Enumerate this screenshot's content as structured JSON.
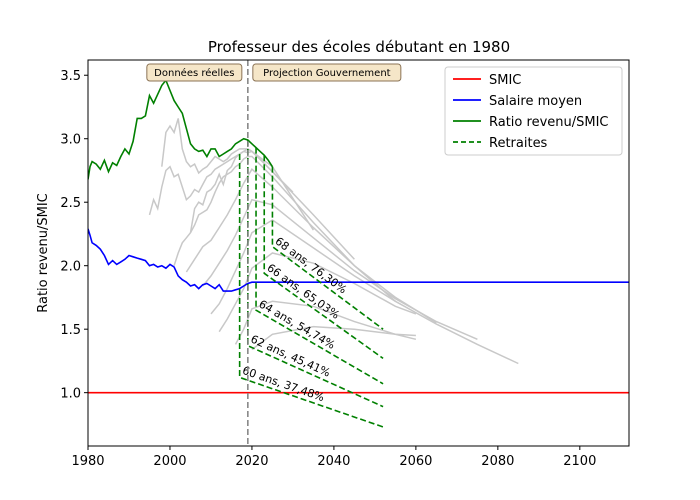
{
  "chart_data": {
    "type": "line",
    "title": "Professeur des écoles débutant en 1980",
    "xlabel": "",
    "ylabel": "Ratio revenu/SMIC",
    "xlim": [
      1980,
      2112
    ],
    "ylim": [
      0.58,
      3.62
    ],
    "x_ticks": [
      1980,
      2000,
      2020,
      2040,
      2060,
      2080,
      2100
    ],
    "y_ticks": [
      1.0,
      1.5,
      2.0,
      2.5,
      3.0,
      3.5
    ],
    "grid": false,
    "legend_position": "top-right",
    "colors": {
      "smic": "#ff0000",
      "salaire": "#0000ff",
      "ratio": "#008000",
      "retraites": "#008000",
      "ghost": "#c8c8c8",
      "divider": "#808080",
      "annot_fill": "#f5e6c8",
      "annot_border": "#8b7355"
    },
    "divider_x": 2019,
    "annotations": [
      {
        "text": "Données réelles",
        "anchor": "left-of-divider"
      },
      {
        "text": "Projection Gouvernement",
        "anchor": "right-of-divider"
      }
    ],
    "legend": [
      {
        "label": "SMIC",
        "color": "#ff0000",
        "style": "solid"
      },
      {
        "label": "Salaire moyen",
        "color": "#0000ff",
        "style": "solid"
      },
      {
        "label": "Ratio revenu/SMIC",
        "color": "#008000",
        "style": "solid"
      },
      {
        "label": "Retraites",
        "color": "#008000",
        "style": "dashed"
      }
    ],
    "series": [
      {
        "name": "SMIC",
        "x": [
          1980,
          2112
        ],
        "y": [
          1.0,
          1.0
        ]
      },
      {
        "name": "Salaire moyen",
        "x": [
          1980,
          1980.5,
          1981,
          1982,
          1983,
          1984,
          1985,
          1986,
          1987,
          1988,
          1989,
          1990,
          1991,
          1992,
          1993,
          1994,
          1995,
          1996,
          1997,
          1998,
          1999,
          2000,
          2001,
          2002,
          2003,
          2004,
          2005,
          2006,
          2007,
          2008,
          2009,
          2010,
          2011,
          2012,
          2013,
          2014,
          2015,
          2016,
          2017,
          2018,
          2019,
          2020,
          2112
        ],
        "y": [
          2.29,
          2.24,
          2.18,
          2.16,
          2.13,
          2.08,
          2.01,
          2.04,
          2.01,
          2.03,
          2.05,
          2.08,
          2.07,
          2.06,
          2.05,
          2.04,
          2.0,
          2.01,
          1.99,
          2.0,
          1.98,
          2.01,
          1.99,
          1.92,
          1.89,
          1.87,
          1.84,
          1.85,
          1.82,
          1.85,
          1.86,
          1.84,
          1.82,
          1.85,
          1.8,
          1.8,
          1.8,
          1.81,
          1.82,
          1.84,
          1.86,
          1.87,
          1.87
        ]
      },
      {
        "name": "Ratio revenu/SMIC",
        "x": [
          1980,
          1980.5,
          1981,
          1982,
          1983,
          1984,
          1985,
          1986,
          1987,
          1988,
          1989,
          1990,
          1991,
          1992,
          1993,
          1994,
          1995,
          1996,
          1997,
          1998,
          1999,
          2000,
          2001,
          2002,
          2003,
          2004,
          2005,
          2006,
          2007,
          2008,
          2009,
          2010,
          2011,
          2012,
          2013,
          2014,
          2015,
          2016,
          2017,
          2018,
          2019,
          2020,
          2021,
          2022,
          2023,
          2024,
          2025
        ],
        "y": [
          2.68,
          2.78,
          2.82,
          2.8,
          2.76,
          2.83,
          2.74,
          2.81,
          2.79,
          2.86,
          2.92,
          2.88,
          2.98,
          3.16,
          3.16,
          3.18,
          3.34,
          3.28,
          3.35,
          3.42,
          3.46,
          3.38,
          3.3,
          3.25,
          3.2,
          3.08,
          2.96,
          2.92,
          2.9,
          2.91,
          2.86,
          2.92,
          2.92,
          2.86,
          2.88,
          2.9,
          2.92,
          2.96,
          2.98,
          3.0,
          2.99,
          2.96,
          2.93,
          2.9,
          2.87,
          2.83,
          2.78
        ]
      }
    ],
    "retirements": [
      {
        "age": 60,
        "rate": "37,48%",
        "label": "60 ans, 37,48%",
        "start_year": 2017,
        "start_ratio": 2.88,
        "pension_start": 1.12,
        "pension_end": 0.73,
        "end_year": 2052
      },
      {
        "age": 62,
        "rate": "45,41%",
        "label": "62 ans, 45,41%",
        "start_year": 2019,
        "start_ratio": 2.99,
        "pension_start": 1.37,
        "pension_end": 0.89,
        "end_year": 2052
      },
      {
        "age": 64,
        "rate": "54,74%",
        "label": "64 ans, 54,74%",
        "start_year": 2021,
        "start_ratio": 2.93,
        "pension_start": 1.65,
        "pension_end": 1.07,
        "end_year": 2052
      },
      {
        "age": 66,
        "rate": "65,03%",
        "label": "66 ans, 65,03%",
        "start_year": 2023,
        "start_ratio": 2.87,
        "pension_start": 1.94,
        "pension_end": 1.27,
        "end_year": 2052
      },
      {
        "age": 68,
        "rate": "76,30%",
        "label": "68 ans, 76,30%",
        "start_year": 2025,
        "start_ratio": 2.78,
        "pension_start": 2.15,
        "pension_end": 1.5,
        "end_year": 2052
      }
    ],
    "ghost_lines": [
      {
        "x": [
          2005,
          2006,
          2007,
          2008,
          2009,
          2010,
          2011,
          2012,
          2013,
          2014,
          2015,
          2016,
          2017,
          2018,
          2019,
          2020,
          2021,
          2022,
          2025,
          2030
        ],
        "y": [
          2.26,
          2.45,
          2.5,
          2.48,
          2.58,
          2.6,
          2.64,
          2.72,
          2.64,
          2.75,
          2.78,
          2.85,
          2.88,
          2.9,
          2.89,
          2.9,
          2.87,
          2.84,
          2.74,
          2.58
        ]
      },
      {
        "x": [
          1998,
          1999,
          2000,
          2001,
          2002,
          2003,
          2004,
          2005,
          2006,
          2007,
          2008,
          2009,
          2010,
          2011,
          2012,
          2013,
          2014,
          2015,
          2016,
          2017,
          2018,
          2019,
          2020,
          2025,
          2035
        ],
        "y": [
          2.78,
          3.05,
          3.1,
          3.05,
          3.16,
          2.92,
          2.82,
          2.78,
          2.8,
          2.73,
          2.76,
          2.78,
          2.82,
          2.86,
          2.84,
          2.82,
          2.84,
          2.88,
          2.9,
          2.92,
          2.92,
          2.92,
          2.9,
          2.78,
          2.28
        ]
      },
      {
        "x": [
          1995,
          1996,
          1997,
          1998,
          1999,
          2000,
          2001,
          2002,
          2003,
          2004,
          2005,
          2006,
          2007,
          2008,
          2009,
          2010,
          2011,
          2012,
          2013,
          2014,
          2015,
          2016,
          2017,
          2018,
          2019,
          2020,
          2025,
          2035,
          2045
        ],
        "y": [
          2.4,
          2.52,
          2.45,
          2.62,
          2.75,
          2.78,
          2.7,
          2.72,
          2.62,
          2.52,
          2.55,
          2.6,
          2.58,
          2.64,
          2.7,
          2.72,
          2.76,
          2.78,
          2.8,
          2.82,
          2.84,
          2.86,
          2.88,
          2.9,
          2.92,
          2.9,
          2.74,
          2.4,
          2.05
        ]
      },
      {
        "x": [
          2001,
          2002,
          2003,
          2004,
          2005,
          2006,
          2007,
          2008,
          2009,
          2010,
          2011,
          2012,
          2013,
          2014,
          2015,
          2016,
          2017,
          2018,
          2019,
          2020,
          2025,
          2035,
          2045,
          2055
        ],
        "y": [
          2.0,
          2.1,
          2.18,
          2.22,
          2.26,
          2.32,
          2.4,
          2.42,
          2.44,
          2.5,
          2.58,
          2.65,
          2.7,
          2.72,
          2.74,
          2.78,
          2.8,
          2.84,
          2.86,
          2.86,
          2.7,
          2.34,
          2.0,
          1.72
        ]
      },
      {
        "x": [
          2004,
          2006,
          2008,
          2010,
          2012,
          2014,
          2016,
          2018,
          2020,
          2025,
          2035,
          2045,
          2055,
          2065
        ],
        "y": [
          1.95,
          2.05,
          2.15,
          2.2,
          2.3,
          2.4,
          2.52,
          2.65,
          2.76,
          2.62,
          2.3,
          2.0,
          1.75,
          1.55
        ]
      },
      {
        "x": [
          2008,
          2010,
          2012,
          2014,
          2016,
          2018,
          2020,
          2025,
          2035,
          2045,
          2055,
          2065,
          2075
        ],
        "y": [
          1.84,
          1.92,
          2.02,
          2.12,
          2.24,
          2.38,
          2.52,
          2.48,
          2.22,
          1.96,
          1.74,
          1.56,
          1.42
        ]
      },
      {
        "x": [
          2010,
          2012,
          2014,
          2016,
          2018,
          2020,
          2025,
          2035,
          2045,
          2055,
          2065,
          2075,
          2085
        ],
        "y": [
          1.62,
          1.7,
          1.82,
          1.96,
          2.1,
          2.26,
          2.36,
          2.14,
          1.92,
          1.72,
          1.54,
          1.38,
          1.23
        ]
      },
      {
        "x": [
          2012,
          2014,
          2016,
          2018,
          2020,
          2025,
          2035,
          2045,
          2055,
          2060
        ],
        "y": [
          1.48,
          1.58,
          1.7,
          1.82,
          1.98,
          2.1,
          2.02,
          1.86,
          1.68,
          1.62
        ]
      },
      {
        "x": [
          2016,
          2018,
          2020,
          2025,
          2035,
          2045,
          2055,
          2060
        ],
        "y": [
          1.38,
          1.5,
          1.66,
          1.72,
          1.68,
          1.56,
          1.46,
          1.42
        ]
      },
      {
        "x": [
          2020,
          2025,
          2035,
          2045,
          2055,
          2060
        ],
        "y": [
          1.34,
          1.46,
          1.52,
          1.5,
          1.46,
          1.45
        ]
      }
    ]
  }
}
